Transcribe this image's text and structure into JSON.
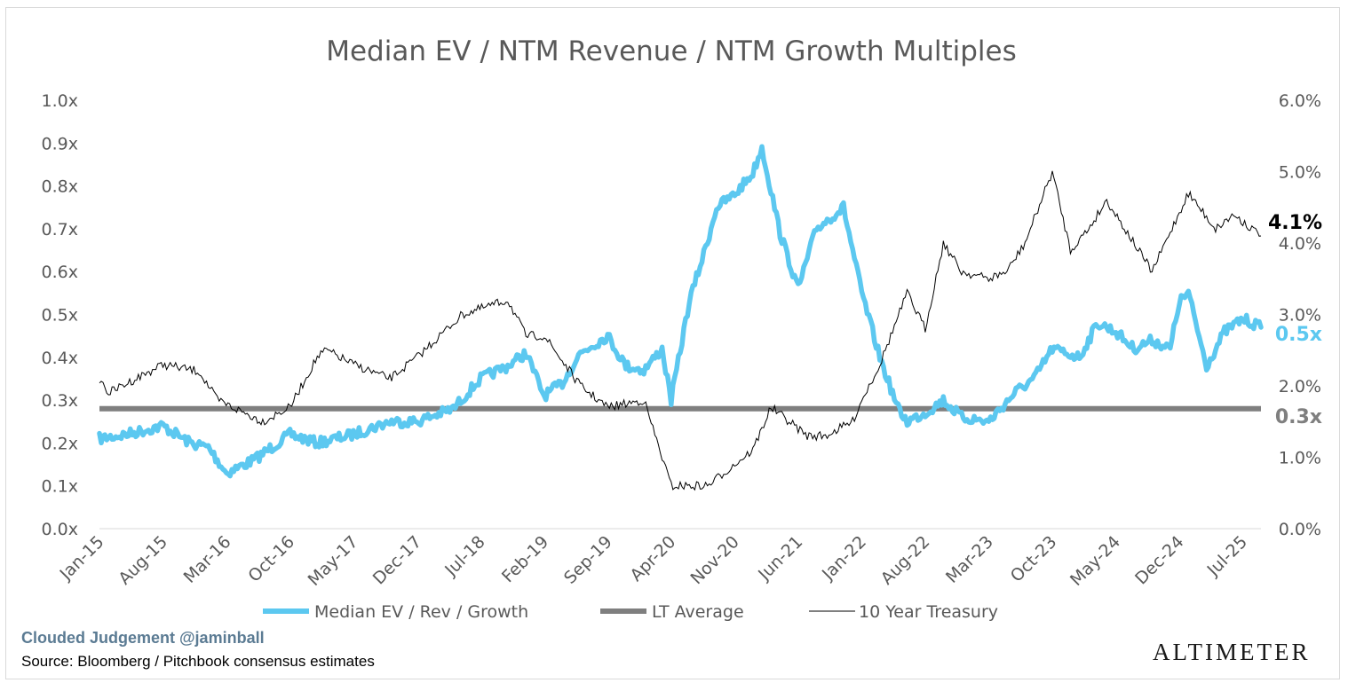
{
  "chart_data": {
    "type": "line",
    "title": "Median EV / NTM Revenue / NTM Growth Multiples",
    "x_tick_labels": [
      "Jan-15",
      "Aug-15",
      "Mar-16",
      "Oct-16",
      "May-17",
      "Dec-17",
      "Jul-18",
      "Feb-19",
      "Sep-19",
      "Apr-20",
      "Nov-20",
      "Jun-21",
      "Jan-22",
      "Aug-22",
      "Mar-23",
      "Oct-23",
      "May-24",
      "Dec-24",
      "Jul-25"
    ],
    "y_left": {
      "ylim": [
        0,
        1.0
      ],
      "ticks": [
        "0.0x",
        "0.1x",
        "0.2x",
        "0.3x",
        "0.4x",
        "0.5x",
        "0.6x",
        "0.7x",
        "0.8x",
        "0.9x",
        "1.0x"
      ]
    },
    "y_right": {
      "ylim": [
        0,
        6.0
      ],
      "ticks": [
        "0.0%",
        "1.0%",
        "2.0%",
        "3.0%",
        "4.0%",
        "5.0%",
        "6.0%"
      ]
    },
    "series": [
      {
        "name": "Median EV / Rev / Growth",
        "axis": "left",
        "color": "#5cc8f0",
        "end_label": "0.5x",
        "x": [
          "Jan-15",
          "Apr-15",
          "Aug-15",
          "Nov-15",
          "Jan-16",
          "Mar-16",
          "Jun-16",
          "Oct-16",
          "Jan-17",
          "May-17",
          "Sep-17",
          "Dec-17",
          "Apr-18",
          "Jul-18",
          "Oct-18",
          "Dec-18",
          "Feb-19",
          "Apr-19",
          "Jun-19",
          "Sep-19",
          "Nov-19",
          "Jan-20",
          "Mar-20",
          "Apr-20",
          "Jun-20",
          "Aug-20",
          "Sep-20",
          "Nov-20",
          "Jan-21",
          "Feb-21",
          "Apr-21",
          "Jun-21",
          "Aug-21",
          "Nov-21",
          "Jan-22",
          "Mar-22",
          "May-22",
          "Jun-22",
          "Aug-22",
          "Oct-22",
          "Dec-22",
          "Mar-23",
          "Jun-23",
          "Aug-23",
          "Oct-23",
          "Jan-24",
          "Mar-24",
          "May-24",
          "Jul-24",
          "Sep-24",
          "Nov-24",
          "Dec-24",
          "Jan-25",
          "Mar-25",
          "May-25",
          "Jul-25",
          "Sep-25"
        ],
        "values": [
          0.21,
          0.22,
          0.24,
          0.2,
          0.19,
          0.13,
          0.16,
          0.22,
          0.2,
          0.22,
          0.25,
          0.25,
          0.28,
          0.35,
          0.38,
          0.41,
          0.31,
          0.34,
          0.41,
          0.45,
          0.38,
          0.37,
          0.42,
          0.3,
          0.53,
          0.67,
          0.75,
          0.78,
          0.83,
          0.89,
          0.69,
          0.56,
          0.7,
          0.75,
          0.55,
          0.4,
          0.28,
          0.25,
          0.27,
          0.3,
          0.26,
          0.25,
          0.32,
          0.35,
          0.42,
          0.4,
          0.48,
          0.46,
          0.42,
          0.44,
          0.42,
          0.53,
          0.55,
          0.38,
          0.46,
          0.49,
          0.47
        ]
      },
      {
        "name": "LT Average",
        "axis": "left",
        "color": "#7f7f7f",
        "end_label": "0.3x",
        "x": [
          "Jan-15",
          "Sep-25"
        ],
        "values": [
          0.28,
          0.28
        ]
      },
      {
        "name": "10 Year Treasury",
        "axis": "right",
        "color": "#000000",
        "end_label": "4.1%",
        "x": [
          "Jan-15",
          "Feb-15",
          "Aug-15",
          "Dec-15",
          "Feb-16",
          "Jul-16",
          "Oct-16",
          "Jan-17",
          "Feb-17",
          "May-17",
          "Sep-17",
          "Dec-17",
          "May-18",
          "Oct-18",
          "Dec-18",
          "Feb-19",
          "Jun-19",
          "Sep-19",
          "Jan-20",
          "Mar-20",
          "Apr-20",
          "Aug-20",
          "Nov-20",
          "Jan-21",
          "Mar-21",
          "Jul-21",
          "Sep-21",
          "Dec-21",
          "Jan-22",
          "Mar-22",
          "Jun-22",
          "Aug-22",
          "Oct-22",
          "Dec-22",
          "Mar-23",
          "May-23",
          "Jul-23",
          "Oct-23",
          "Dec-23",
          "Feb-24",
          "Apr-24",
          "Sep-24",
          "Jan-25",
          "Apr-25",
          "Jun-25",
          "Sep-25"
        ],
        "values": [
          2.1,
          1.9,
          2.3,
          2.2,
          1.8,
          1.5,
          1.7,
          2.4,
          2.5,
          2.3,
          2.1,
          2.4,
          3.0,
          3.2,
          2.7,
          2.7,
          2.0,
          1.7,
          1.8,
          1.0,
          0.6,
          0.6,
          0.9,
          1.1,
          1.7,
          1.3,
          1.3,
          1.5,
          1.8,
          2.3,
          3.3,
          2.8,
          4.0,
          3.6,
          3.5,
          3.6,
          4.0,
          5.0,
          3.9,
          4.2,
          4.6,
          3.6,
          4.7,
          4.2,
          4.4,
          4.1
        ]
      }
    ],
    "legend_position": "bottom",
    "grid": false
  },
  "footer": {
    "credit": "Clouded Judgement @jaminball",
    "source": "Source: Bloomberg / Pitchbook consensus estimates",
    "logo": "ALTIMETER"
  }
}
